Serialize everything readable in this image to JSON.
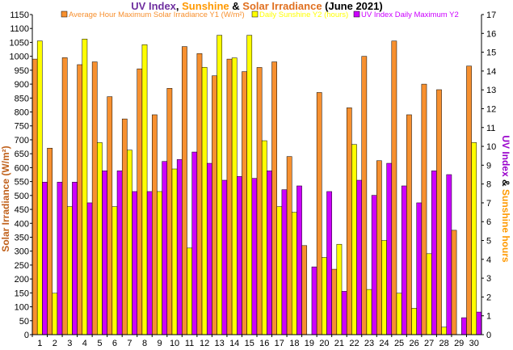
{
  "chart_data": {
    "type": "bar",
    "title": {
      "part1": "UV Index",
      "sep1": ", ",
      "part2": "Sunshine",
      "sep2": " & ",
      "part3": "Solar Irradiance",
      "part4": " (June 2021)"
    },
    "ylabel_left": "Solar Irradiance (W/m²)",
    "ylabel_right": {
      "part1": "UV Index",
      "sep": " & ",
      "part2": "Sunshine hours"
    },
    "categories": [
      "1",
      "2",
      "3",
      "4",
      "5",
      "6",
      "7",
      "8",
      "9",
      "10",
      "11",
      "12",
      "13",
      "14",
      "15",
      "16",
      "17",
      "18",
      "19",
      "20",
      "21",
      "22",
      "23",
      "24",
      "25",
      "26",
      "27",
      "28",
      "29",
      "30"
    ],
    "y_left": {
      "min": 0,
      "max": 1150,
      "step": 50
    },
    "y_right": {
      "min": 0,
      "max": 17,
      "step": 1
    },
    "legend_position": "top",
    "grid": false,
    "series": [
      {
        "name": "Average Hour Maximum Solar Irradiance Y1 (W/m²)",
        "axis": "left",
        "color": "#f7902f",
        "values": [
          990,
          670,
          995,
          970,
          980,
          855,
          775,
          955,
          790,
          885,
          1035,
          1010,
          930,
          990,
          945,
          960,
          980,
          640,
          320,
          870,
          235,
          815,
          1000,
          625,
          1055,
          790,
          900,
          880,
          375,
          965
        ]
      },
      {
        "name": "Daily Sunshine Y2 (hours)",
        "axis": "right",
        "color": "#ffff00",
        "values": [
          15.6,
          2.2,
          6.8,
          15.7,
          10.2,
          6.8,
          9.8,
          15.4,
          7.6,
          8.8,
          4.6,
          14.2,
          15.9,
          14.7,
          15.9,
          10.3,
          6.8,
          6.5,
          0,
          4.1,
          4.8,
          10.1,
          2.4,
          5.0,
          2.2,
          1.4,
          4.3,
          0.4,
          0,
          10.2
        ]
      },
      {
        "name": "UV Index Daily Maximum Y2",
        "axis": "right",
        "color": "#cc00ff",
        "values": [
          8.1,
          8.1,
          8.1,
          7.0,
          8.7,
          8.7,
          7.6,
          7.6,
          9.2,
          9.3,
          9.7,
          9.1,
          8.2,
          8.4,
          8.3,
          8.7,
          7.7,
          7.9,
          3.6,
          7.6,
          2.3,
          8.2,
          7.4,
          9.1,
          7.9,
          7.0,
          8.7,
          8.5,
          0.9,
          1.2
        ]
      }
    ]
  },
  "colors": {
    "title_uv": "#7030a0",
    "title_sunshine": "#ff9900",
    "title_solar": "#e07020",
    "title_rest": "#000000",
    "left_axis_label": "#c0601a",
    "right_axis_uv": "#9900cc",
    "right_axis_sunshine": "#ff9900",
    "right_axis_ticks": "#7030a0"
  }
}
